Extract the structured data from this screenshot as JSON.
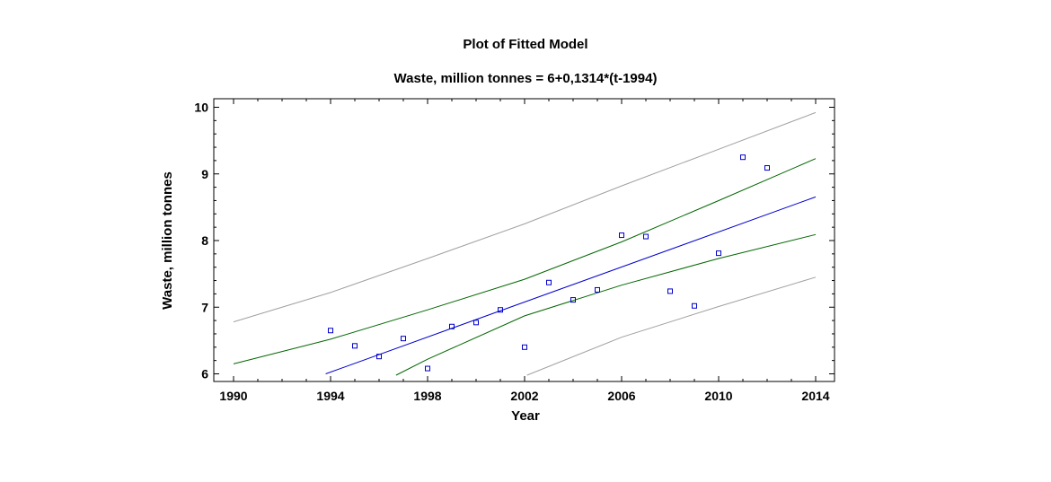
{
  "chart_data": {
    "type": "scatter",
    "title": "Plot of Fitted Model",
    "subtitle": "Waste, million tonnes = 6+0,1314*(t-1994)",
    "xlabel": "Year",
    "ylabel": "Waste, million tonnes",
    "xlim": [
      1990,
      2014
    ],
    "ylim": [
      5.9,
      10.1
    ],
    "x_ticks": [
      1990,
      1994,
      1998,
      2002,
      2006,
      2010,
      2014
    ],
    "y_ticks": [
      6,
      7,
      8,
      9,
      10
    ],
    "grid": false,
    "model": {
      "intercept": 6,
      "slope": 0.1314,
      "x0": 1994
    },
    "series": [
      {
        "type": "scatter",
        "color": "#0000cc",
        "x": [
          1994,
          1995,
          1996,
          1997,
          1998,
          1999,
          2000,
          2001,
          2002,
          2003,
          2004,
          2005,
          2006,
          2007,
          2008,
          2009,
          2010,
          2011,
          2012
        ],
        "y": [
          6.65,
          6.42,
          6.26,
          6.53,
          6.08,
          6.71,
          6.77,
          6.96,
          6.4,
          7.37,
          7.11,
          7.26,
          8.08,
          8.06,
          7.24,
          7.02,
          7.81,
          9.25,
          9.09
        ]
      },
      {
        "type": "line",
        "color": "#0000cc",
        "x": [
          1993.8,
          2014
        ],
        "y": [
          6.0,
          8.655
        ]
      },
      {
        "type": "line",
        "color": "#006600",
        "x": [
          1990,
          1994,
          1998,
          2002,
          2006,
          2010,
          2014
        ],
        "y": [
          6.15,
          6.52,
          6.96,
          7.42,
          7.98,
          8.6,
          9.23
        ]
      },
      {
        "type": "line",
        "color": "#006600",
        "x": [
          1996.7,
          1998,
          2002,
          2006,
          2010,
          2014
        ],
        "y": [
          5.98,
          6.22,
          6.87,
          7.33,
          7.73,
          8.09
        ]
      },
      {
        "type": "line",
        "color": "#a0a0a0",
        "x": [
          1990,
          1994,
          1998,
          2002,
          2006,
          2010,
          2014
        ],
        "y": [
          6.78,
          7.22,
          7.73,
          8.25,
          8.82,
          9.37,
          9.92
        ]
      },
      {
        "type": "line",
        "color": "#a0a0a0",
        "x": [
          2002.1,
          2006,
          2010,
          2014
        ],
        "y": [
          5.98,
          6.55,
          7.01,
          7.45
        ]
      }
    ]
  }
}
